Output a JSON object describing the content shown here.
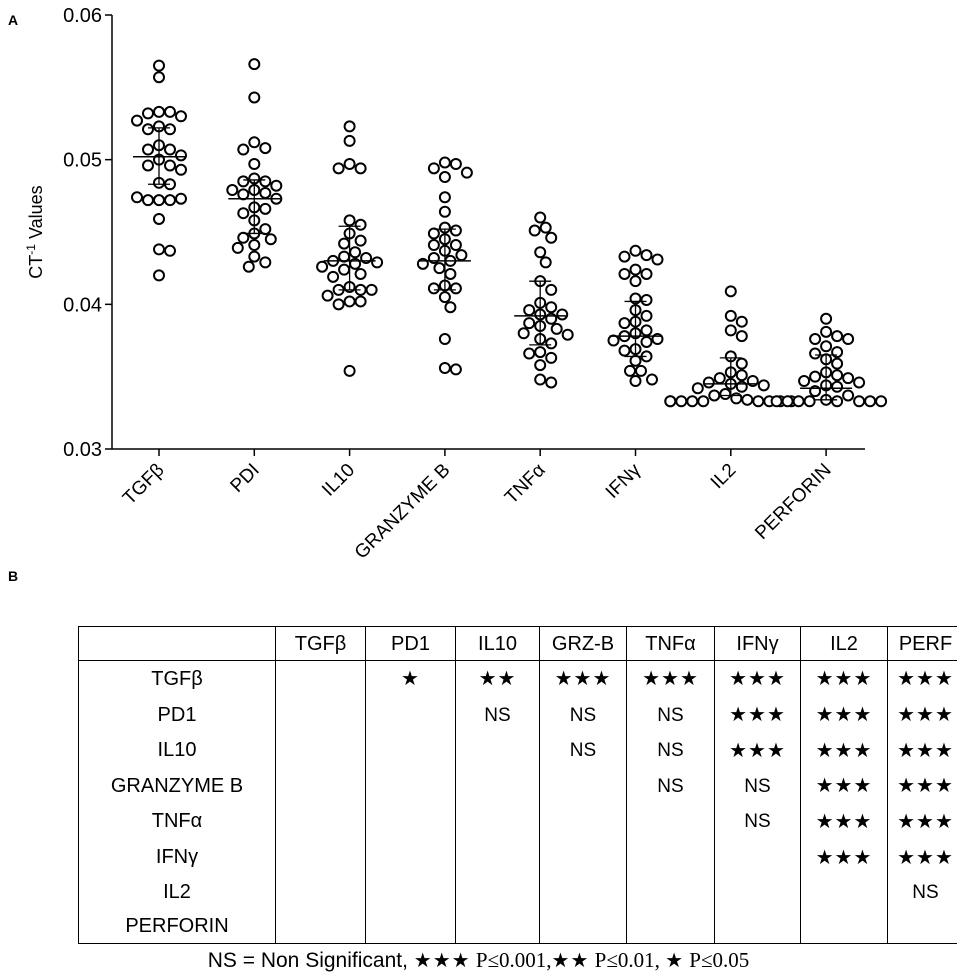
{
  "panel_a_label": "A",
  "panel_b_label": "B",
  "chart_data": {
    "type": "scatter",
    "ylabel": "CT",
    "ylabel_sup": "-1",
    "ylabel_rest": " Values",
    "ylim": [
      0.03,
      0.06
    ],
    "yticks": [
      "0.03",
      "0.04",
      "0.05",
      "0.06"
    ],
    "ytick_values": [
      0.03,
      0.04,
      0.05,
      0.06
    ],
    "grid": false,
    "categories": [
      "TGFβ",
      "PDI",
      "IL10",
      "GRANZYME B",
      "TNFα",
      "IFNγ",
      "IL2",
      "PERFORIN"
    ],
    "series": [
      {
        "name": "TGFβ",
        "mean": 0.0502,
        "sd_low": 0.0483,
        "sd_high": 0.0522,
        "values": [
          0.0565,
          0.0557,
          0.0533,
          0.0533,
          0.0532,
          0.053,
          0.0527,
          0.0523,
          0.0521,
          0.0521,
          0.051,
          0.0507,
          0.0507,
          0.0503,
          0.05,
          0.0496,
          0.0496,
          0.0493,
          0.0484,
          0.0483,
          0.0472,
          0.0472,
          0.0472,
          0.0473,
          0.0474,
          0.0459,
          0.0438,
          0.0437,
          0.042
        ]
      },
      {
        "name": "PDI",
        "mean": 0.0473,
        "sd_low": 0.0449,
        "sd_high": 0.0486,
        "values": [
          0.0566,
          0.0543,
          0.0512,
          0.0508,
          0.0507,
          0.0497,
          0.0487,
          0.0485,
          0.0485,
          0.0482,
          0.0479,
          0.0479,
          0.0477,
          0.0476,
          0.0473,
          0.0467,
          0.0466,
          0.0463,
          0.0458,
          0.0452,
          0.0449,
          0.0446,
          0.0445,
          0.0441,
          0.0439,
          0.0433,
          0.0429,
          0.0426
        ]
      },
      {
        "name": "IL10",
        "mean": 0.043,
        "sd_low": 0.041,
        "sd_high": 0.0454,
        "values": [
          0.0523,
          0.0513,
          0.0497,
          0.0494,
          0.0494,
          0.0458,
          0.0455,
          0.0449,
          0.0444,
          0.0442,
          0.0436,
          0.0433,
          0.0432,
          0.043,
          0.0429,
          0.0428,
          0.0426,
          0.0424,
          0.0421,
          0.0419,
          0.0412,
          0.041,
          0.041,
          0.041,
          0.0406,
          0.0402,
          0.0402,
          0.04,
          0.0354
        ]
      },
      {
        "name": "GRANZYME B",
        "mean": 0.043,
        "sd_low": 0.041,
        "sd_high": 0.0452,
        "values": [
          0.0498,
          0.0497,
          0.0494,
          0.0491,
          0.0488,
          0.0474,
          0.0464,
          0.0453,
          0.0451,
          0.0449,
          0.0445,
          0.0441,
          0.0441,
          0.0437,
          0.0434,
          0.0432,
          0.043,
          0.0428,
          0.0425,
          0.0421,
          0.0413,
          0.0411,
          0.0411,
          0.0405,
          0.0398,
          0.0376,
          0.0356,
          0.0355
        ]
      },
      {
        "name": "TNFα",
        "mean": 0.0392,
        "sd_low": 0.0372,
        "sd_high": 0.0416,
        "values": [
          0.046,
          0.0453,
          0.0451,
          0.0446,
          0.0436,
          0.0429,
          0.0416,
          0.041,
          0.0401,
          0.0398,
          0.0396,
          0.0393,
          0.0393,
          0.039,
          0.0387,
          0.0385,
          0.0383,
          0.038,
          0.0379,
          0.0376,
          0.0373,
          0.0367,
          0.0366,
          0.0363,
          0.0358,
          0.0348,
          0.0346
        ]
      },
      {
        "name": "IFNγ",
        "mean": 0.0378,
        "sd_low": 0.0364,
        "sd_high": 0.0402,
        "values": [
          0.0437,
          0.0434,
          0.0433,
          0.0431,
          0.0424,
          0.0421,
          0.0421,
          0.0416,
          0.0404,
          0.0403,
          0.0396,
          0.0392,
          0.0388,
          0.0387,
          0.0382,
          0.038,
          0.0378,
          0.0376,
          0.0375,
          0.0374,
          0.0369,
          0.0368,
          0.0364,
          0.0361,
          0.0354,
          0.0354,
          0.0348,
          0.0347
        ]
      },
      {
        "name": "IL2",
        "mean": 0.0345,
        "sd_low": 0.0337,
        "sd_high": 0.0363,
        "values": [
          0.0409,
          0.0392,
          0.0388,
          0.0382,
          0.0378,
          0.0364,
          0.0359,
          0.0353,
          0.0351,
          0.0349,
          0.0347,
          0.0346,
          0.0345,
          0.0344,
          0.0343,
          0.0342,
          0.0338,
          0.0337,
          0.0335,
          0.0334,
          0.0333,
          0.0333,
          0.0333,
          0.0333,
          0.0333,
          0.0333,
          0.0333,
          0.0333,
          0.0333
        ]
      },
      {
        "name": "PERFORIN",
        "mean": 0.0342,
        "sd_low": 0.0334,
        "sd_high": 0.0365,
        "values": [
          0.039,
          0.0381,
          0.0378,
          0.0376,
          0.0376,
          0.0371,
          0.0367,
          0.0366,
          0.0362,
          0.0359,
          0.0353,
          0.0351,
          0.035,
          0.0349,
          0.0347,
          0.0346,
          0.0344,
          0.0343,
          0.034,
          0.0337,
          0.0334,
          0.0333,
          0.0333,
          0.0333,
          0.0333,
          0.0333,
          0.0333,
          0.0333,
          0.0333
        ]
      }
    ]
  },
  "table": {
    "columns": [
      "",
      "TGFβ",
      "PD1",
      "IL10",
      "GRZ-B",
      "TNFα",
      "IFNγ",
      "IL2",
      "PERF"
    ],
    "rows": [
      {
        "label": "TGFβ",
        "cells": [
          "",
          "★",
          "★★",
          "★★★",
          "★★★",
          "★★★",
          "★★★",
          "★★★"
        ]
      },
      {
        "label": "PD1",
        "cells": [
          "",
          "",
          "NS",
          "NS",
          "NS",
          "★★★",
          "★★★",
          "★★★"
        ]
      },
      {
        "label": "IL10",
        "cells": [
          "",
          "",
          "",
          "NS",
          "NS",
          "★★★",
          "★★★",
          "★★★"
        ]
      },
      {
        "label": "GRANZYME B",
        "cells": [
          "",
          "",
          "",
          "",
          "NS",
          "NS",
          "★★★",
          "★★★"
        ]
      },
      {
        "label": "TNFα",
        "cells": [
          "",
          "",
          "",
          "",
          "",
          "NS",
          "★★★",
          "★★★"
        ]
      },
      {
        "label": "IFNγ",
        "cells": [
          "",
          "",
          "",
          "",
          "",
          "",
          "★★★",
          "★★★"
        ]
      },
      {
        "label": "IL2",
        "cells": [
          "",
          "",
          "",
          "",
          "",
          "",
          "",
          "NS"
        ]
      },
      {
        "label": "PERFORIN",
        "cells": [
          "",
          "",
          "",
          "",
          "",
          "",
          "",
          ""
        ]
      }
    ]
  },
  "footnote": {
    "ns_text": "NS = Non Significant, ",
    "stars3": "★★★",
    "p3": " P≤0.001,",
    "stars2": "★★",
    "p2": " P≤0.01, ",
    "stars1": "★",
    "p1": " P≤0.05"
  }
}
